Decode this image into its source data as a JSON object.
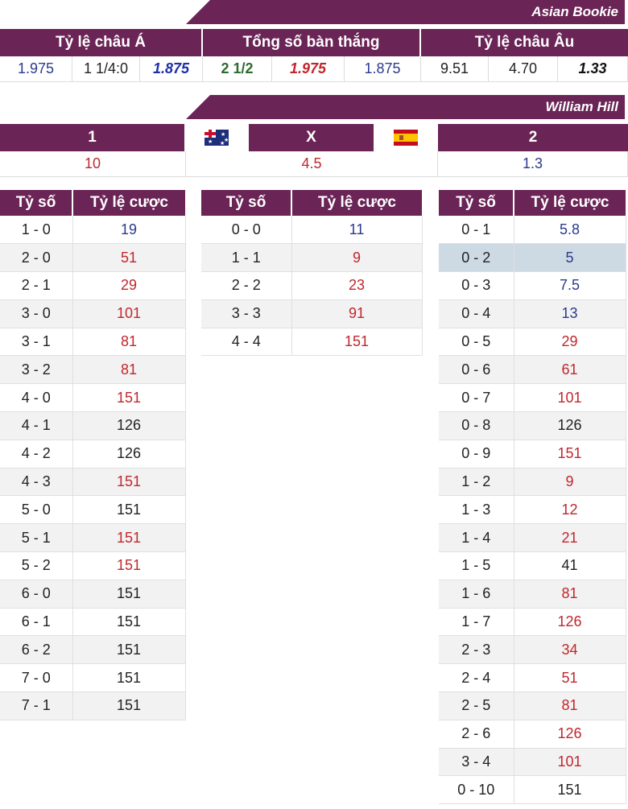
{
  "asian_bookie": {
    "title": "Asian Bookie",
    "headers": [
      "Tỷ lệ châu Á",
      "Tổng số bàn thắng",
      "Tỷ lệ châu Âu"
    ],
    "values": [
      {
        "text": "1.975",
        "style": "blue"
      },
      {
        "text": "1 1/4:0",
        "style": "black"
      },
      {
        "text": "1.875",
        "style": "bi-blue"
      },
      {
        "text": "2 1/2",
        "style": "green"
      },
      {
        "text": "1.975",
        "style": "bi-red"
      },
      {
        "text": "1.875",
        "style": "blue"
      },
      {
        "text": "9.51",
        "style": "black"
      },
      {
        "text": "4.70",
        "style": "black"
      },
      {
        "text": "1.33",
        "style": "bi-black"
      }
    ]
  },
  "william_hill": {
    "title": "William Hill",
    "home_label": "1",
    "draw_label": "X",
    "away_label": "2",
    "home_flag": "australia-flag-icon",
    "away_flag": "spain-flag-icon",
    "home_odds": "10",
    "draw_odds": "4.5",
    "away_odds": "1.3"
  },
  "score_headers": {
    "score": "Tỷ số",
    "odds": "Tỷ lệ cược"
  },
  "home_win_scores": [
    {
      "score": "1 - 0",
      "odds": "19",
      "color": "blue"
    },
    {
      "score": "2 - 0",
      "odds": "51",
      "color": "red"
    },
    {
      "score": "2 - 1",
      "odds": "29",
      "color": "red"
    },
    {
      "score": "3 - 0",
      "odds": "101",
      "color": "red"
    },
    {
      "score": "3 - 1",
      "odds": "81",
      "color": "red"
    },
    {
      "score": "3 - 2",
      "odds": "81",
      "color": "red"
    },
    {
      "score": "4 - 0",
      "odds": "151",
      "color": "red"
    },
    {
      "score": "4 - 1",
      "odds": "126",
      "color": "black"
    },
    {
      "score": "4 - 2",
      "odds": "126",
      "color": "black"
    },
    {
      "score": "4 - 3",
      "odds": "151",
      "color": "red"
    },
    {
      "score": "5 - 0",
      "odds": "151",
      "color": "black"
    },
    {
      "score": "5 - 1",
      "odds": "151",
      "color": "red"
    },
    {
      "score": "5 - 2",
      "odds": "151",
      "color": "red"
    },
    {
      "score": "6 - 0",
      "odds": "151",
      "color": "black"
    },
    {
      "score": "6 - 1",
      "odds": "151",
      "color": "black"
    },
    {
      "score": "6 - 2",
      "odds": "151",
      "color": "black"
    },
    {
      "score": "7 - 0",
      "odds": "151",
      "color": "black"
    },
    {
      "score": "7 - 1",
      "odds": "151",
      "color": "black"
    }
  ],
  "draw_scores": [
    {
      "score": "0 - 0",
      "odds": "11",
      "color": "blue"
    },
    {
      "score": "1 - 1",
      "odds": "9",
      "color": "red"
    },
    {
      "score": "2 - 2",
      "odds": "23",
      "color": "red"
    },
    {
      "score": "3 - 3",
      "odds": "91",
      "color": "red"
    },
    {
      "score": "4 - 4",
      "odds": "151",
      "color": "red"
    }
  ],
  "away_win_scores": [
    {
      "score": "0 - 1",
      "odds": "5.8",
      "color": "blue"
    },
    {
      "score": "0 - 2",
      "odds": "5",
      "color": "blue",
      "highlight": true
    },
    {
      "score": "0 - 3",
      "odds": "7.5",
      "color": "blue"
    },
    {
      "score": "0 - 4",
      "odds": "13",
      "color": "blue"
    },
    {
      "score": "0 - 5",
      "odds": "29",
      "color": "red"
    },
    {
      "score": "0 - 6",
      "odds": "61",
      "color": "red"
    },
    {
      "score": "0 - 7",
      "odds": "101",
      "color": "red"
    },
    {
      "score": "0 - 8",
      "odds": "126",
      "color": "black"
    },
    {
      "score": "0 - 9",
      "odds": "151",
      "color": "red"
    },
    {
      "score": "1 - 2",
      "odds": "9",
      "color": "red"
    },
    {
      "score": "1 - 3",
      "odds": "12",
      "color": "red"
    },
    {
      "score": "1 - 4",
      "odds": "21",
      "color": "red"
    },
    {
      "score": "1 - 5",
      "odds": "41",
      "color": "black"
    },
    {
      "score": "1 - 6",
      "odds": "81",
      "color": "red"
    },
    {
      "score": "1 - 7",
      "odds": "126",
      "color": "red"
    },
    {
      "score": "2 - 3",
      "odds": "34",
      "color": "red"
    },
    {
      "score": "2 - 4",
      "odds": "51",
      "color": "red"
    },
    {
      "score": "2 - 5",
      "odds": "81",
      "color": "red"
    },
    {
      "score": "2 - 6",
      "odds": "126",
      "color": "red"
    },
    {
      "score": "3 - 4",
      "odds": "101",
      "color": "red"
    },
    {
      "score": "0 - 10",
      "odds": "151",
      "color": "black"
    }
  ],
  "colors": {
    "header_bg": "#6a2456",
    "blue": "#2b3a8c",
    "red": "#c0272d",
    "highlight": "#cdd9e3"
  }
}
